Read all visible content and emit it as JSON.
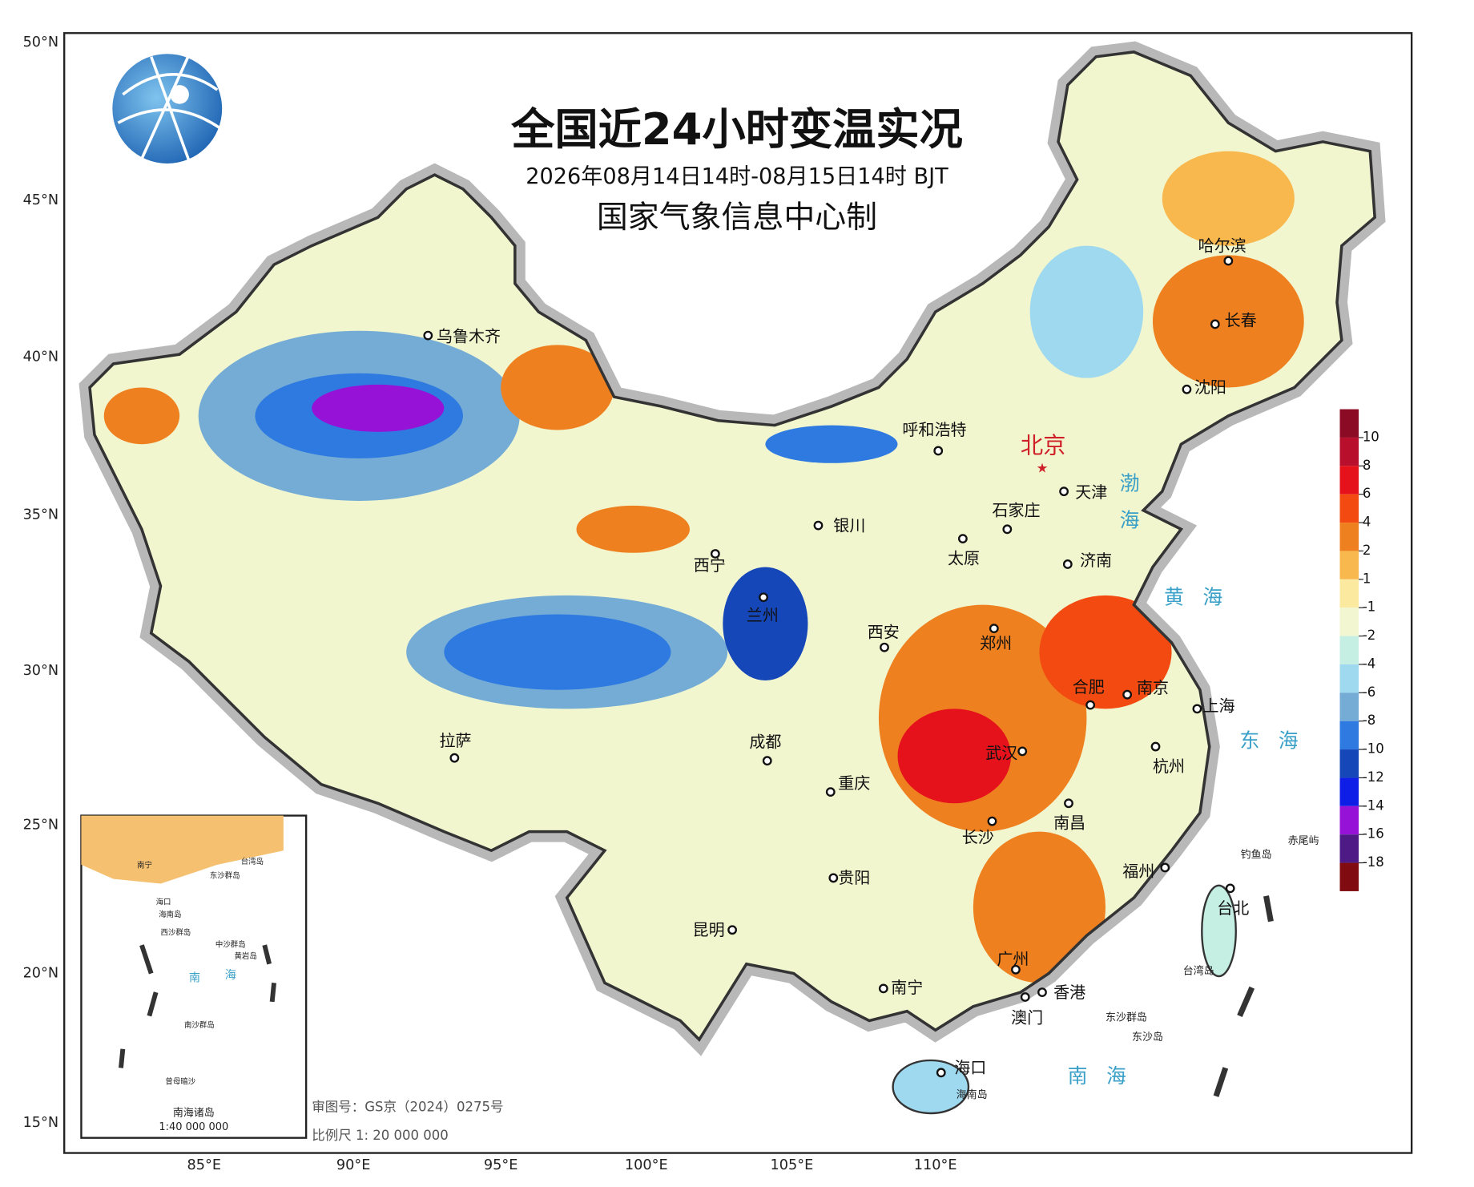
{
  "header": {
    "title": "全国近24小时变温实况",
    "subtitle": "2026年08月14日14时-08月15日14时 BJT",
    "producer": "国家气象信息中心制"
  },
  "axes": {
    "lat": [
      "50°N",
      "45°N",
      "40°N",
      "35°N",
      "30°N",
      "25°N",
      "20°N",
      "15°N"
    ],
    "lon": [
      "85°E",
      "90°E",
      "95°E",
      "100°E",
      "105°E",
      "110°E"
    ]
  },
  "colorbar": {
    "ticks": [
      10,
      8,
      6,
      4,
      2,
      1,
      -1,
      -2,
      -4,
      -6,
      -8,
      -10,
      -12,
      -14,
      -16,
      -18
    ],
    "colors": [
      "#8b0a24",
      "#b8102c",
      "#e5121c",
      "#f24a10",
      "#ef8020",
      "#f9b84e",
      "#fbe9a0",
      "#f2f7d2",
      "#c6efe4",
      "#9fd9ef",
      "#74acd6",
      "#2f7ae0",
      "#1547b8",
      "#0f1ee6",
      "#9512d6",
      "#4d1a86",
      "#800b10"
    ]
  },
  "capital": "北京",
  "cities": [
    "乌鲁木齐",
    "呼和浩特",
    "银川",
    "石家庄",
    "天津",
    "太原",
    "济南",
    "西宁",
    "兰州",
    "西安",
    "郑州",
    "合肥",
    "南京",
    "上海",
    "拉萨",
    "成都",
    "武汉",
    "杭州",
    "重庆",
    "长沙",
    "南昌",
    "贵阳",
    "福州",
    "台北",
    "昆明",
    "广州",
    "南宁",
    "香港",
    "澳门",
    "哈尔滨",
    "长春",
    "沈阳",
    "海口"
  ],
  "seas": [
    "渤海",
    "黄海",
    "东海",
    "南海"
  ],
  "islands": [
    "钓鱼岛",
    "赤尾屿",
    "台湾岛",
    "东沙群岛",
    "东沙岛",
    "海南岛"
  ],
  "inset": {
    "title": "南海诸岛",
    "scale": "1:40 000 000",
    "labels": [
      "南",
      "海",
      "西沙群岛",
      "中沙群岛",
      "东沙群岛",
      "海口",
      "海南岛",
      "南宁",
      "台湾岛",
      "黄岩岛",
      "南沙群岛",
      "曾母暗沙"
    ]
  },
  "credits": [
    "审图号：GS京（2024）0275号",
    "比例尺 1: 20 000 000"
  ]
}
